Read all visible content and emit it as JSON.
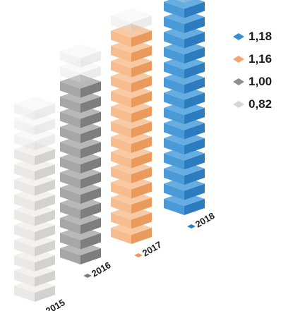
{
  "chart_data": {
    "type": "bar",
    "categories": [
      "2015",
      "2016",
      "2017",
      "2018"
    ],
    "values": [
      0.82,
      1.0,
      1.16,
      1.18
    ],
    "legend": [
      {
        "label": "1,18",
        "color": "#3a8ed0"
      },
      {
        "label": "1,16",
        "color": "#f2a66a"
      },
      {
        "label": "1,00",
        "color": "#8e8e8e"
      },
      {
        "label": "0,82",
        "color": "#d9d7d6"
      }
    ],
    "colors": {
      "2015": {
        "left": "#ebe9e8",
        "right": "#d4d2d1",
        "top": "#f3f2f1"
      },
      "2016": {
        "left": "#a7a7a7",
        "right": "#7e7e7e",
        "top": "#b8b8b8"
      },
      "2017": {
        "left": "#f7bd8f",
        "right": "#e99a5c",
        "top": "#f8caa4"
      },
      "2018": {
        "left": "#4b9ad8",
        "right": "#2d7cbf",
        "top": "#66aee2"
      }
    },
    "legend_position": "top-right"
  }
}
